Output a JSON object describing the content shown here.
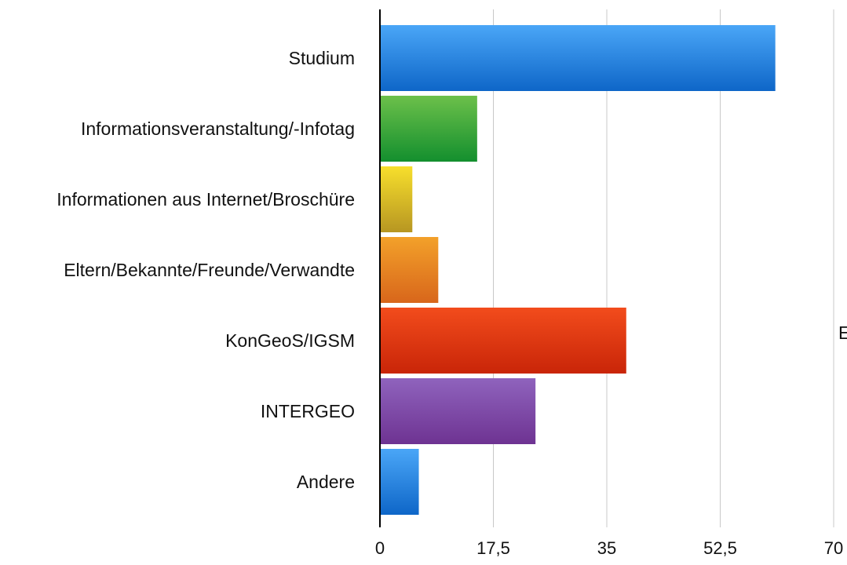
{
  "chart_data": {
    "type": "bar",
    "orientation": "horizontal",
    "categories": [
      "Studium",
      "Informationsveranstaltung/-Infotag",
      "Informationen aus Internet/Broschüre",
      "Eltern/Bekannte/Freunde/Verwandte",
      "KonGeoS/IGSM",
      "INTERGEO",
      "Andere"
    ],
    "values": [
      61,
      15,
      5,
      9,
      38,
      24,
      6
    ],
    "colors": [
      {
        "top": "#4aa6f7",
        "bottom": "#0e66c8"
      },
      {
        "top": "#6cc04a",
        "bottom": "#138f2e"
      },
      {
        "top": "#f7df2c",
        "bottom": "#b79622"
      },
      {
        "top": "#f3a12a",
        "bottom": "#d8661b"
      },
      {
        "top": "#f24c1c",
        "bottom": "#c92508"
      },
      {
        "top": "#8f63bd",
        "bottom": "#6e3392"
      },
      {
        "top": "#4aa6f7",
        "bottom": "#0e66c8"
      }
    ],
    "xticks": [
      "0",
      "17,5",
      "35",
      "52,5",
      "70"
    ],
    "xlim": [
      0,
      70
    ],
    "grid": true,
    "cut_off_text": "E"
  }
}
